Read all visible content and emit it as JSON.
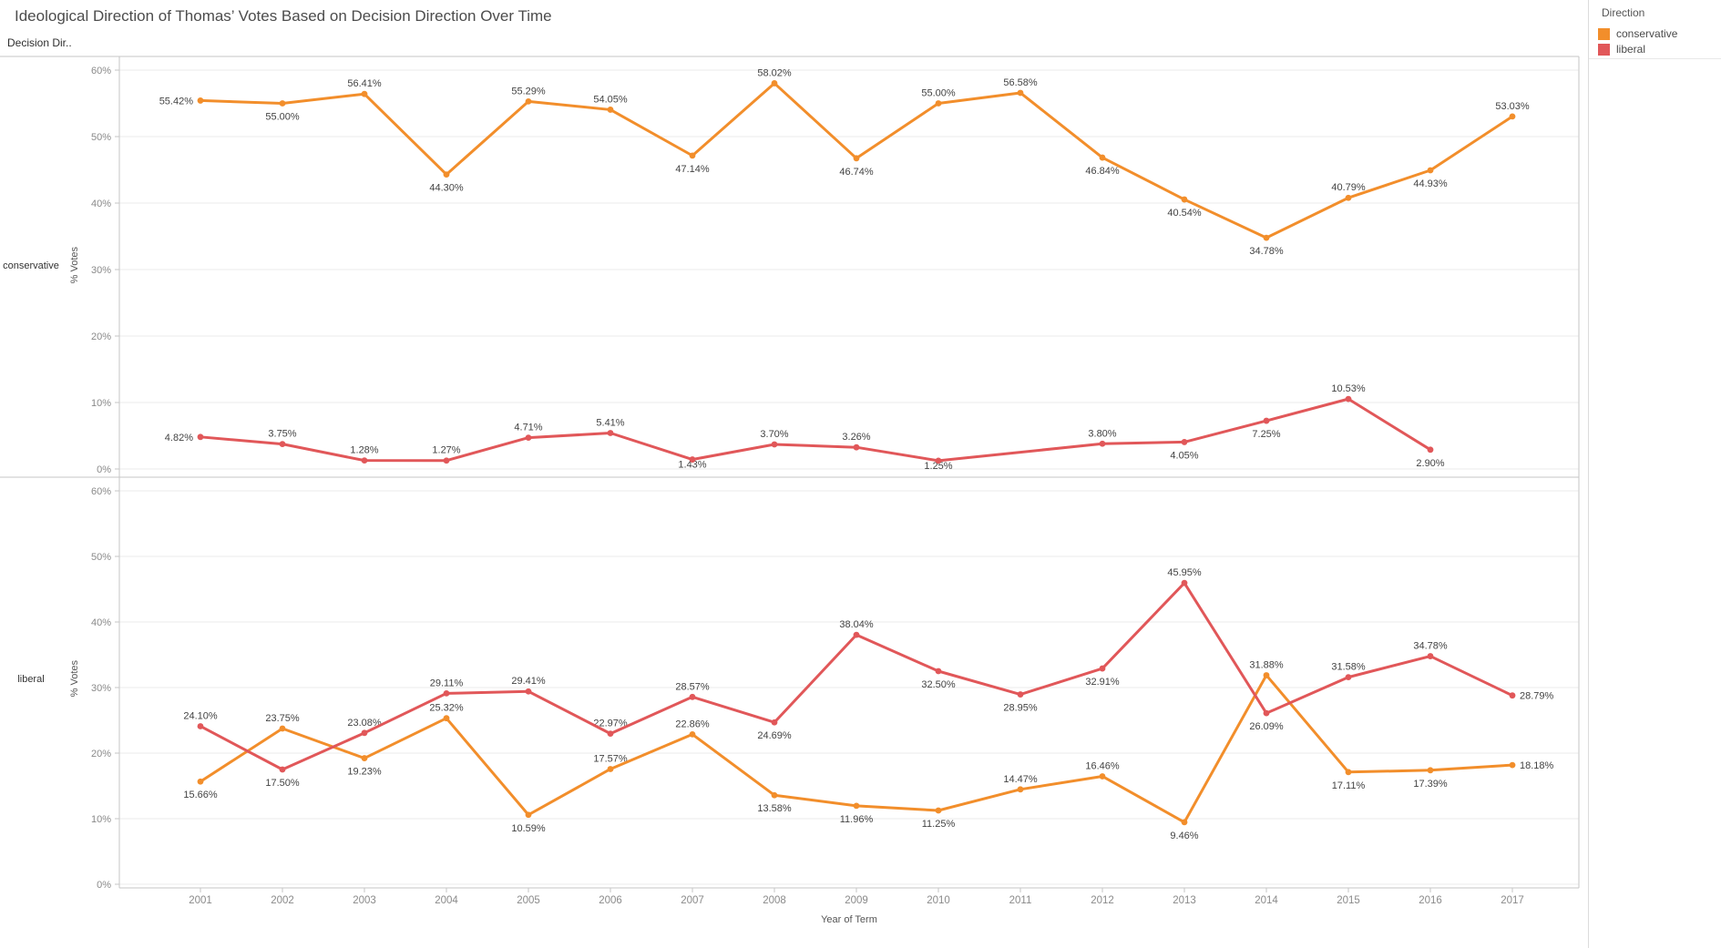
{
  "title": "Ideological Direction of Thomas’ Votes Based on Decision Direction Over Time",
  "row_header": "Decision Dir..",
  "legend": {
    "title": "Direction",
    "items": [
      {
        "label": "conservative",
        "color": "#F28E2B"
      },
      {
        "label": "liberal",
        "color": "#E15759"
      }
    ]
  },
  "axes": {
    "x_title": "Year of Term",
    "y_title": "% Votes",
    "y_ticks": [
      "0%",
      "10%",
      "20%",
      "30%",
      "40%",
      "50%",
      "60%"
    ],
    "years": [
      "2001",
      "2002",
      "2003",
      "2004",
      "2005",
      "2006",
      "2007",
      "2008",
      "2009",
      "2010",
      "2011",
      "2012",
      "2013",
      "2014",
      "2015",
      "2016",
      "2017"
    ]
  },
  "chart_data": {
    "type": "line",
    "title": "Ideological Direction of Thomas’ Votes Based on Decision Direction Over Time",
    "xlabel": "Year of Term",
    "ylabel": "% Votes",
    "ylim": [
      0,
      60
    ],
    "grid": true,
    "legend_position": "top-right",
    "x": [
      2001,
      2002,
      2003,
      2004,
      2005,
      2006,
      2007,
      2008,
      2009,
      2010,
      2011,
      2012,
      2013,
      2014,
      2015,
      2016,
      2017
    ],
    "panels": [
      {
        "row_label": "conservative",
        "series": [
          {
            "name": "conservative",
            "color": "#F28E2B",
            "points": [
              {
                "year": 2001,
                "value": 55.42,
                "label": "55.42%",
                "pos": "left"
              },
              {
                "year": 2002,
                "value": 55.0,
                "label": "55.00%",
                "pos": "below"
              },
              {
                "year": 2003,
                "value": 56.41,
                "label": "56.41%",
                "pos": "above"
              },
              {
                "year": 2004,
                "value": 44.3,
                "label": "44.30%",
                "pos": "below"
              },
              {
                "year": 2005,
                "value": 55.29,
                "label": "55.29%",
                "pos": "above"
              },
              {
                "year": 2006,
                "value": 54.05,
                "label": "54.05%",
                "pos": "above"
              },
              {
                "year": 2007,
                "value": 47.14,
                "label": "47.14%",
                "pos": "below"
              },
              {
                "year": 2008,
                "value": 58.02,
                "label": "58.02%",
                "pos": "above"
              },
              {
                "year": 2009,
                "value": 46.74,
                "label": "46.74%",
                "pos": "below"
              },
              {
                "year": 2010,
                "value": 55.0,
                "label": "55.00%",
                "pos": "above"
              },
              {
                "year": 2011,
                "value": 56.58,
                "label": "56.58%",
                "pos": "above"
              },
              {
                "year": 2012,
                "value": 46.84,
                "label": "46.84%",
                "pos": "below"
              },
              {
                "year": 2013,
                "value": 40.54,
                "label": "40.54%",
                "pos": "below"
              },
              {
                "year": 2014,
                "value": 34.78,
                "label": "34.78%",
                "pos": "below"
              },
              {
                "year": 2015,
                "value": 40.79,
                "label": "40.79%",
                "pos": "above"
              },
              {
                "year": 2016,
                "value": 44.93,
                "label": "44.93%",
                "pos": "below"
              },
              {
                "year": 2017,
                "value": 53.03,
                "label": "53.03%",
                "pos": "above"
              }
            ]
          },
          {
            "name": "liberal",
            "color": "#E15759",
            "points": [
              {
                "year": 2001,
                "value": 4.82,
                "label": "4.82%",
                "pos": "left"
              },
              {
                "year": 2002,
                "value": 3.75,
                "label": "3.75%",
                "pos": "above"
              },
              {
                "year": 2003,
                "value": 1.28,
                "label": "1.28%",
                "pos": "above"
              },
              {
                "year": 2004,
                "value": 1.27,
                "label": "1.27%",
                "pos": "above"
              },
              {
                "year": 2005,
                "value": 4.71,
                "label": "4.71%",
                "pos": "above"
              },
              {
                "year": 2006,
                "value": 5.41,
                "label": "5.41%",
                "pos": "above"
              },
              {
                "year": 2007,
                "value": 1.43,
                "label": "1.43%",
                "pos": "on"
              },
              {
                "year": 2008,
                "value": 3.7,
                "label": "3.70%",
                "pos": "above"
              },
              {
                "year": 2009,
                "value": 3.26,
                "label": "3.26%",
                "pos": "above"
              },
              {
                "year": 2010,
                "value": 1.25,
                "label": "1.25%",
                "pos": "on"
              },
              {
                "year": 2012,
                "value": 3.8,
                "label": "3.80%",
                "pos": "above"
              },
              {
                "year": 2013,
                "value": 4.05,
                "label": "4.05%",
                "pos": "below"
              },
              {
                "year": 2014,
                "value": 7.25,
                "label": "7.25%",
                "pos": "below"
              },
              {
                "year": 2015,
                "value": 10.53,
                "label": "10.53%",
                "pos": "above"
              },
              {
                "year": 2016,
                "value": 2.9,
                "label": "2.90%",
                "pos": "below"
              }
            ]
          }
        ]
      },
      {
        "row_label": "liberal",
        "series": [
          {
            "name": "conservative",
            "color": "#F28E2B",
            "points": [
              {
                "year": 2001,
                "value": 15.66,
                "label": "15.66%",
                "pos": "below"
              },
              {
                "year": 2002,
                "value": 23.75,
                "label": "23.75%",
                "pos": "above"
              },
              {
                "year": 2003,
                "value": 19.23,
                "label": "19.23%",
                "pos": "below"
              },
              {
                "year": 2004,
                "value": 25.32,
                "label": "25.32%",
                "pos": "above"
              },
              {
                "year": 2005,
                "value": 10.59,
                "label": "10.59%",
                "pos": "below"
              },
              {
                "year": 2006,
                "value": 17.57,
                "label": "17.57%",
                "pos": "above"
              },
              {
                "year": 2007,
                "value": 22.86,
                "label": "22.86%",
                "pos": "above"
              },
              {
                "year": 2008,
                "value": 13.58,
                "label": "13.58%",
                "pos": "below"
              },
              {
                "year": 2009,
                "value": 11.96,
                "label": "11.96%",
                "pos": "below"
              },
              {
                "year": 2010,
                "value": 11.25,
                "label": "11.25%",
                "pos": "below"
              },
              {
                "year": 2011,
                "value": 14.47,
                "label": "14.47%",
                "pos": "above"
              },
              {
                "year": 2012,
                "value": 16.46,
                "label": "16.46%",
                "pos": "above"
              },
              {
                "year": 2013,
                "value": 9.46,
                "label": "9.46%",
                "pos": "below"
              },
              {
                "year": 2014,
                "value": 31.88,
                "label": "31.88%",
                "pos": "above"
              },
              {
                "year": 2015,
                "value": 17.11,
                "label": "17.11%",
                "pos": "below"
              },
              {
                "year": 2016,
                "value": 17.39,
                "label": "17.39%",
                "pos": "below"
              },
              {
                "year": 2017,
                "value": 18.18,
                "label": "18.18%",
                "pos": "right"
              }
            ]
          },
          {
            "name": "liberal",
            "color": "#E15759",
            "points": [
              {
                "year": 2001,
                "value": 24.1,
                "label": "24.10%",
                "pos": "above"
              },
              {
                "year": 2002,
                "value": 17.5,
                "label": "17.50%",
                "pos": "below"
              },
              {
                "year": 2003,
                "value": 23.08,
                "label": "23.08%",
                "pos": "above"
              },
              {
                "year": 2004,
                "value": 29.11,
                "label": "29.11%",
                "pos": "above"
              },
              {
                "year": 2005,
                "value": 29.41,
                "label": "29.41%",
                "pos": "above"
              },
              {
                "year": 2006,
                "value": 22.97,
                "label": "22.97%",
                "pos": "above"
              },
              {
                "year": 2007,
                "value": 28.57,
                "label": "28.57%",
                "pos": "above"
              },
              {
                "year": 2008,
                "value": 24.69,
                "label": "24.69%",
                "pos": "below"
              },
              {
                "year": 2009,
                "value": 38.04,
                "label": "38.04%",
                "pos": "above"
              },
              {
                "year": 2010,
                "value": 32.5,
                "label": "32.50%",
                "pos": "below"
              },
              {
                "year": 2011,
                "value": 28.95,
                "label": "28.95%",
                "pos": "below"
              },
              {
                "year": 2012,
                "value": 32.91,
                "label": "32.91%",
                "pos": "below"
              },
              {
                "year": 2013,
                "value": 45.95,
                "label": "45.95%",
                "pos": "above"
              },
              {
                "year": 2014,
                "value": 26.09,
                "label": "26.09%",
                "pos": "below"
              },
              {
                "year": 2015,
                "value": 31.58,
                "label": "31.58%",
                "pos": "above"
              },
              {
                "year": 2016,
                "value": 34.78,
                "label": "34.78%",
                "pos": "above"
              },
              {
                "year": 2017,
                "value": 28.79,
                "label": "28.79%",
                "pos": "right"
              }
            ]
          }
        ]
      }
    ]
  }
}
